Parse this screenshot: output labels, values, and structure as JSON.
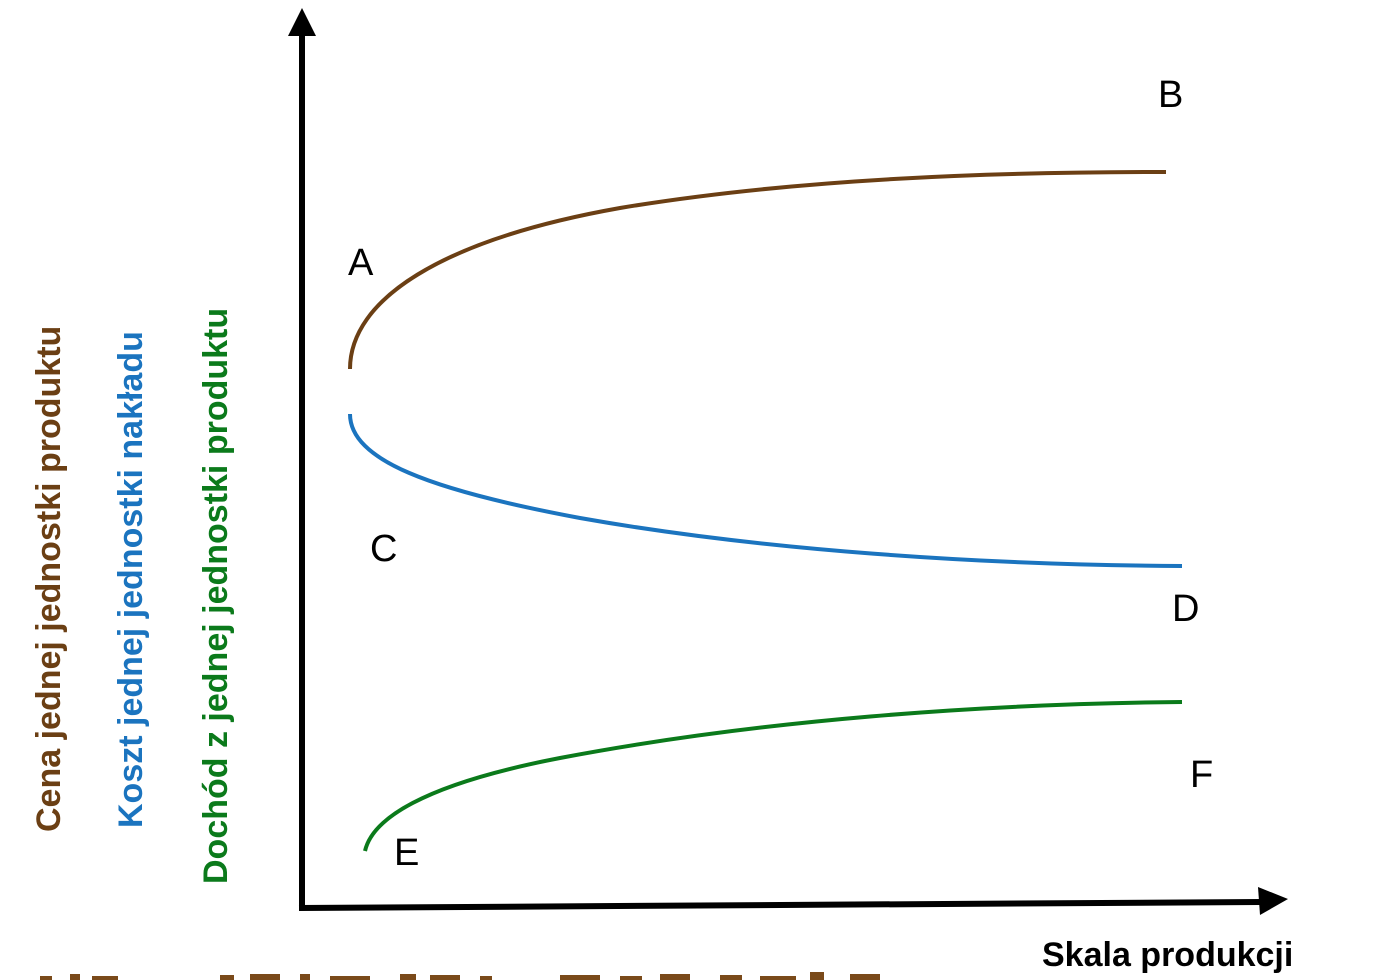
{
  "colors": {
    "brown": "#6b3f14",
    "blue": "#1b74bf",
    "green": "#0b7a1b",
    "axis": "#000000"
  },
  "y_axis_titles": {
    "price": "Cena jednej jednostki produktu",
    "cost": "Koszt jednej jednostki nakładu",
    "income": "Dochód z jednej jednostki produktu"
  },
  "x_axis_title": "Skala produkcji",
  "point_labels": {
    "a": "A",
    "b": "B",
    "c": "C",
    "d": "D",
    "e": "E",
    "f": "F"
  },
  "curves": [
    {
      "id": "price",
      "color": "brown",
      "start_label": "A",
      "end_label": "B",
      "trend": "rising"
    },
    {
      "id": "cost",
      "color": "blue",
      "start_label": "C",
      "end_label": "D",
      "trend": "falling"
    },
    {
      "id": "income",
      "color": "green",
      "start_label": "E",
      "end_label": "F",
      "trend": "rising"
    }
  ]
}
